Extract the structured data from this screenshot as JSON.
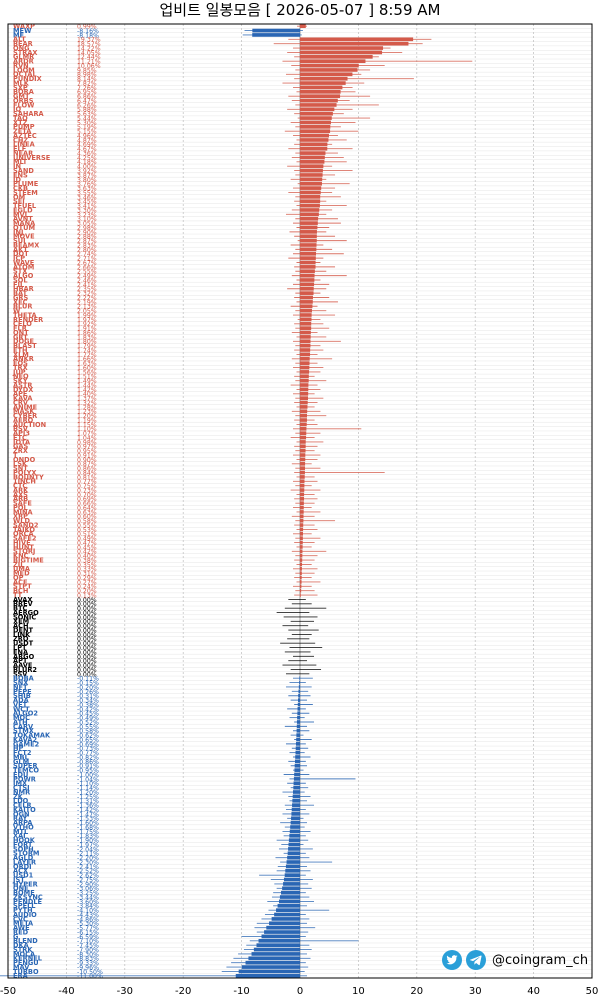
{
  "chart_data": {
    "type": "bar",
    "orientation": "horizontal",
    "title": "업비트 일봉모음 [ 2026-05-07 ]  8:59 AM",
    "xlim": [
      -50,
      50
    ],
    "x_ticks": [
      "-50",
      "-40",
      "-30",
      "-20",
      "-10",
      "0",
      "10",
      "20",
      "30",
      "40",
      "50"
    ],
    "grid": true,
    "colors": {
      "up": "#d45a4a",
      "down": "#2a66b4",
      "flat": "#000000"
    },
    "categories": [
      "WAXP",
      "MEW",
      "ME",
      "ALT",
      "BEAR",
      "ONG",
      "STRAX",
      "GLMR",
      "ARDR",
      "RVN",
      "LOOM",
      "OCTAL",
      "PUNDIX",
      "MLK",
      "SXP",
      "BORA",
      "GMT",
      "ORBS",
      "FLOW",
      "IQ",
      "SAHARA",
      "TAO",
      "XTZ",
      "PUMP",
      "ZETA",
      "AZTEC",
      "CHZ",
      "LINEA",
      "ELF",
      "NEAR",
      "UNIVERSE",
      "MLT",
      "IN",
      "SAND",
      "ENS",
      "ID",
      "PLUME",
      "CKB",
      "STEEM",
      "OM",
      "SEI",
      "TFUEL",
      "EGLD",
      "MVL",
      "AVNT",
      "MANA",
      "QTUM",
      "INJ",
      "MOVE",
      "SUI",
      "BEAMX",
      "AKT",
      "DOT",
      "ICP",
      "WAVE",
      "ATOM",
      "STX",
      "ALGO",
      "SOL",
      "FIL",
      "HBAR",
      "BAT",
      "GRS",
      "XEC",
      "BLUR",
      "W",
      "THETA",
      "RENDER",
      "CELO",
      "FLR",
      "ONT",
      "GRT",
      "DOGE",
      "BLAST",
      "ETH",
      "XLM",
      "ANKR",
      "EOS",
      "TRX",
      "JUP",
      "NEO",
      "SKY",
      "ASTR",
      "DYDX",
      "APE",
      "KAVA",
      "CRV",
      "ANIME",
      "MASK",
      "CYBER",
      "AERO",
      "AUCTION",
      "BSV",
      "API3",
      "ETC",
      "IOTA",
      "GAS",
      "ZRX",
      "T",
      "ONDO",
      "LSK",
      "SNT",
      "POLYX",
      "BOUNTY",
      "1INCH",
      "CTC",
      "ARK",
      "AXS",
      "ARB",
      "SAFE",
      "POL",
      "MINA",
      "XRP",
      "WLD",
      "SAND2",
      "TAIKO",
      "ORCA",
      "SAFE2",
      "HIVE",
      "HUNT",
      "STORJ",
      "KNC",
      "BIGTIME",
      "ZIL",
      "UMA",
      "MED",
      "OP",
      "ACE",
      "STPT",
      "BCH",
      "TT",
      "AVAX",
      "BREV",
      "BTC",
      "AERGO",
      "SONIC",
      "XEM",
      "ACH",
      "DENT",
      "LINK",
      "ZRO",
      "USDT",
      "LPT",
      "ENA",
      "ARGO",
      "APT",
      "AAVE",
      "BLUR2",
      "SSV",
      "BOBA",
      "SNX",
      "NFT",
      "PEPE",
      "SHIB",
      "ADA",
      "VET",
      "WCT",
      "ALGO2",
      "MOC",
      "ATH",
      "CARV",
      "STMX",
      "TOKAMAK",
      "KAVA2",
      "GAME2",
      "HP",
      "FCT2",
      "MBL",
      "GLM",
      "SUPER",
      "TEMCO",
      "EDU",
      "POWR",
      "IMX",
      "CTSI",
      "NMR",
      "ZK",
      "LDO",
      "CELR",
      "KAITO",
      "OGN",
      "RAY",
      "ARPA",
      "VTHO",
      "MTL",
      "XAI",
      "HOOK",
      "FORT",
      "SOPH",
      "STORM",
      "AGLD",
      "LAYER",
      "ORDI",
      "ACX",
      "USD1",
      "JST",
      "HYPER",
      "ONE",
      "BOME",
      "ZKSYNC",
      "PENDLE",
      "SPELL",
      "PYTH",
      "AUDIO",
      "CVC",
      "META",
      "AWE",
      "RED",
      "G",
      "BLEND",
      "DKA",
      "STRK",
      "MOCA",
      "KERNEL",
      "PENGU",
      "MAV",
      "TURBO",
      "ERA"
    ],
    "values": [
      0.99,
      -8.16,
      -8.18,
      19.37,
      18.57,
      14.22,
      14.05,
      12.44,
      11.21,
      10.06,
      9.85,
      8.98,
      8.14,
      7.82,
      7.26,
      6.95,
      6.86,
      6.47,
      6.26,
      5.88,
      5.63,
      5.44,
      5.3,
      5.19,
      5.15,
      4.96,
      4.87,
      4.69,
      4.67,
      4.36,
      4.25,
      4.18,
      4.0,
      3.92,
      3.87,
      3.8,
      3.76,
      3.63,
      3.55,
      3.46,
      3.45,
      3.41,
      3.3,
      3.23,
      3.1,
      3.05,
      2.98,
      2.9,
      2.88,
      2.87,
      2.83,
      2.8,
      2.74,
      2.71,
      2.67,
      2.66,
      2.55,
      2.49,
      2.46,
      2.41,
      2.35,
      2.32,
      2.22,
      2.19,
      2.13,
      2.05,
      1.99,
      1.97,
      1.92,
      1.91,
      1.86,
      1.83,
      1.8,
      1.79,
      1.74,
      1.72,
      1.66,
      1.63,
      1.6,
      1.56,
      1.51,
      1.49,
      1.44,
      1.42,
      1.4,
      1.37,
      1.32,
      1.28,
      1.23,
      1.2,
      1.19,
      1.15,
      1.1,
      1.07,
      1.04,
      0.98,
      0.97,
      0.95,
      0.91,
      0.9,
      0.87,
      0.86,
      0.84,
      0.81,
      0.77,
      0.75,
      0.73,
      0.7,
      0.69,
      0.66,
      0.64,
      0.63,
      0.6,
      0.58,
      0.55,
      0.53,
      0.51,
      0.49,
      0.47,
      0.45,
      0.42,
      0.4,
      0.38,
      0.35,
      0.33,
      0.31,
      0.29,
      0.27,
      0.24,
      0.2,
      0.13,
      0.0,
      0.0,
      0.0,
      0.0,
      0.0,
      0.0,
      0.0,
      0.0,
      0.0,
      0.0,
      0.0,
      0.0,
      0.0,
      0.0,
      0.0,
      0.0,
      0.0,
      0.0,
      -0.11,
      -0.15,
      -0.2,
      -0.26,
      -0.31,
      -0.34,
      -0.38,
      -0.42,
      -0.45,
      -0.49,
      -0.52,
      -0.55,
      -0.58,
      -0.62,
      -0.65,
      -0.69,
      -0.73,
      -0.77,
      -0.82,
      -0.86,
      -0.91,
      -0.95,
      -1.0,
      -1.04,
      -1.1,
      -1.14,
      -1.2,
      -1.25,
      -1.31,
      -1.36,
      -1.42,
      -1.47,
      -1.53,
      -1.6,
      -1.68,
      -1.75,
      -1.83,
      -1.9,
      -1.97,
      -2.04,
      -2.11,
      -2.2,
      -2.3,
      -2.41,
      -2.52,
      -2.62,
      -2.75,
      -2.9,
      -3.06,
      -3.25,
      -3.44,
      -3.6,
      -3.84,
      -4.1,
      -4.43,
      -4.86,
      -5.3,
      -5.77,
      -6.15,
      -6.59,
      -7.1,
      -7.45,
      -7.9,
      -8.3,
      -8.83,
      -9.33,
      -9.96,
      -10.5,
      -11.0,
      -12.0
    ],
    "labels": [
      "0.99%",
      "-8.16%",
      "-8.18%",
      "19.37%",
      "18.57%",
      "14.22%",
      "14.05%",
      "12.44%",
      "11.21%",
      "10.06%",
      "9.85%",
      "8.98%",
      "8.14%",
      "7.82%",
      "7.26%",
      "6.95%",
      "6.86%",
      "6.47%",
      "6.26%",
      "5.88%",
      "5.63%",
      "5.44%",
      "5.30%",
      "5.19%",
      "5.15%",
      "4.96%",
      "4.87%",
      "4.69%",
      "4.67%",
      "4.36%",
      "4.25%",
      "4.18%",
      "4.00%",
      "3.92%",
      "3.87%",
      "3.80%",
      "3.76%",
      "3.63%",
      "3.55%",
      "3.46%",
      "3.45%",
      "3.41%",
      "3.30%",
      "3.23%",
      "3.10%",
      "3.05%",
      "2.98%",
      "2.90%",
      "2.88%",
      "2.87%",
      "2.83%",
      "2.80%",
      "2.74%",
      "2.71%",
      "2.67%",
      "2.66%",
      "2.55%",
      "2.49%",
      "2.46%",
      "2.41%",
      "2.35%",
      "2.32%",
      "2.22%",
      "2.19%",
      "2.13%",
      "2.05%",
      "1.99%",
      "1.97%",
      "1.92%",
      "1.91%",
      "1.86%",
      "1.83%",
      "1.80%",
      "1.79%",
      "1.74%",
      "1.72%",
      "1.66%",
      "1.63%",
      "1.60%",
      "1.56%",
      "1.51%",
      "1.49%",
      "1.44%",
      "1.42%",
      "1.40%",
      "1.37%",
      "1.32%",
      "1.28%",
      "1.23%",
      "1.20%",
      "1.19%",
      "1.15%",
      "1.10%",
      "1.07%",
      "1.04%",
      "0.98%",
      "0.97%",
      "0.95%",
      "0.91%",
      "0.90%",
      "0.87%",
      "0.86%",
      "0.84%",
      "0.81%",
      "0.77%",
      "0.75%",
      "0.73%",
      "0.70%",
      "0.69%",
      "0.66%",
      "0.64%",
      "0.63%",
      "0.60%",
      "0.58%",
      "0.55%",
      "0.53%",
      "0.51%",
      "0.49%",
      "0.47%",
      "0.45%",
      "0.42%",
      "0.40%",
      "0.38%",
      "0.35%",
      "0.33%",
      "0.31%",
      "0.29%",
      "0.27%",
      "0.24%",
      "0.20%",
      "0.13%",
      "0.00%",
      "0.00%",
      "0.00%",
      "0.00%",
      "0.00%",
      "0.00%",
      "0.00%",
      "0.00%",
      "0.00%",
      "0.00%",
      "0.00%",
      "0.00%",
      "0.00%",
      "0.00%",
      "0.00%",
      "0.00%",
      "0.00%",
      "0.00%",
      "-0.11%",
      "-0.15%",
      "-0.20%",
      "-0.26%",
      "-0.31%",
      "-0.34%",
      "-0.38%",
      "-0.42%",
      "-0.45%",
      "-0.49%",
      "-0.52%",
      "-0.55%",
      "-0.58%",
      "-0.62%",
      "-0.65%",
      "-0.69%",
      "-0.73%",
      "-0.77%",
      "-0.82%",
      "-0.86%",
      "-0.91%",
      "-0.95%",
      "-1.00%",
      "-1.04%",
      "-1.10%",
      "-1.14%",
      "-1.20%",
      "-1.25%",
      "-1.31%",
      "-1.36%",
      "-1.42%",
      "-1.47%",
      "-1.53%",
      "-1.60%",
      "-1.68%",
      "-1.75%",
      "-1.83%",
      "-1.90%",
      "-1.97%",
      "-2.04%",
      "-2.11%",
      "-2.20%",
      "-2.30%",
      "-2.41%",
      "-2.52%",
      "-2.62%",
      "-2.75%",
      "-2.90%",
      "-3.06%",
      "-3.25%",
      "-3.44%",
      "-3.60%",
      "-3.84%",
      "-4.10%",
      "-4.43%",
      "-4.86%",
      "-5.30%",
      "-5.77%",
      "-6.15%",
      "-6.59%",
      "-7.10%",
      "-7.45%",
      "-7.90%",
      "-8.30%",
      "-8.83%",
      "-9.33%",
      "-9.96%",
      "-10.50%",
      "-11.00%",
      "-12.00%"
    ],
    "lows": [
      -0.5,
      -9.5,
      -9.8,
      -2.0,
      -4.5,
      -1.2,
      -2.2,
      -1.0,
      -3.0,
      -1.5,
      -0.8,
      -2.4,
      -1.0,
      -3.0,
      -1.2,
      -0.6,
      -2.0,
      -1.4,
      -0.8,
      -2.2,
      -1.0,
      -0.4,
      -1.6,
      -0.8,
      -2.6,
      -1.2,
      -0.6,
      -1.0,
      -2.0,
      -0.8,
      -1.4,
      -0.6,
      -2.2,
      -1.0,
      -0.8,
      -1.6,
      -0.4,
      -1.2,
      -2.0,
      -0.8,
      -1.0,
      -0.6,
      -1.4,
      -2.4,
      -0.8,
      -1.2,
      -0.6,
      -1.8,
      -1.0,
      -0.4,
      -1.6,
      -0.8,
      -1.2,
      -2.0,
      -0.6,
      -1.0,
      -0.8,
      -1.4,
      -0.6,
      -1.2,
      -2.2,
      -0.8,
      -1.0,
      -0.6,
      -1.6,
      -0.8,
      -1.2,
      -0.4,
      -1.0,
      -0.8,
      -1.4,
      -0.6,
      -1.2,
      -0.8,
      -1.0,
      -0.6,
      -1.4,
      -0.8,
      -1.2,
      -0.6,
      -1.0,
      -0.8,
      -1.6,
      -0.6,
      -1.2,
      -0.8,
      -1.0,
      -0.6,
      -1.4,
      -0.8,
      -1.0,
      -0.6,
      -1.2,
      -0.8,
      -1.6,
      -0.6,
      -1.0,
      -0.8,
      -1.2,
      -0.6,
      -1.4,
      -0.8,
      -1.0,
      -0.6,
      -1.2,
      -0.8,
      -1.6,
      -0.6,
      -1.0,
      -0.8,
      -1.2,
      -0.6,
      -1.4,
      -0.8,
      -1.0,
      -0.6,
      -1.2,
      -0.8,
      -1.0,
      -0.6,
      -1.4,
      -0.8,
      -1.0,
      -0.6,
      -1.2,
      -0.8,
      -1.0,
      -0.6,
      -1.2,
      -0.8,
      -1.0,
      -2.0,
      -1.4,
      -2.6,
      -4.0,
      -2.8,
      -1.6,
      -3.0,
      -2.0,
      -1.4,
      -2.2,
      -3.4,
      -1.8,
      -2.6,
      -1.2,
      -2.0,
      -3.0,
      -1.6,
      -2.4,
      -1.2,
      -1.8,
      -2.4,
      -1.4,
      -2.0,
      -1.6,
      -1.0,
      -2.2,
      -1.4,
      -1.8,
      -1.0,
      -2.6,
      -1.2,
      -1.6,
      -1.0,
      -2.4,
      -1.4,
      -1.8,
      -1.2,
      -2.0,
      -1.6,
      -1.2,
      -2.8,
      -1.8,
      -2.2,
      -1.6,
      -3.0,
      -2.0,
      -1.8,
      -2.6,
      -2.4,
      -3.0,
      -2.2,
      -3.4,
      -2.6,
      -3.0,
      -2.8,
      -4.0,
      -3.2,
      -3.6,
      -2.8,
      -4.2,
      -3.4,
      -3.8,
      -4.0,
      -7.0,
      -5.0,
      -4.4,
      -4.0,
      -4.6,
      -4.8,
      -5.6,
      -4.6,
      -5.4,
      -6.0,
      -6.6,
      -7.4,
      -7.8,
      -7.4,
      -10.0,
      -8.6,
      -9.2,
      -9.6,
      -10.6,
      -11.4,
      -11.8,
      -12.6,
      -13.4
    ],
    "highs": [
      1.2,
      0.5,
      0.3,
      22.5,
      21.0,
      15.5,
      17.5,
      13.5,
      29.5,
      14.5,
      12.0,
      10.5,
      19.5,
      11.0,
      9.0,
      9.5,
      12.0,
      8.5,
      13.5,
      9.0,
      7.5,
      12.0,
      9.5,
      7.0,
      10.0,
      6.5,
      8.0,
      5.5,
      9.0,
      6.5,
      7.5,
      8.0,
      5.5,
      9.0,
      6.0,
      4.5,
      8.5,
      6.0,
      5.5,
      7.0,
      4.5,
      8.0,
      5.5,
      4.5,
      6.5,
      7.0,
      5.0,
      4.5,
      6.0,
      8.0,
      4.0,
      5.5,
      7.5,
      4.0,
      3.5,
      6.0,
      4.5,
      8.0,
      3.5,
      5.0,
      4.5,
      3.5,
      5.0,
      6.5,
      3.0,
      4.5,
      6.0,
      3.5,
      4.0,
      5.0,
      3.0,
      4.5,
      7.0,
      3.5,
      4.0,
      3.0,
      5.5,
      3.0,
      4.0,
      3.5,
      2.5,
      4.5,
      3.0,
      3.5,
      2.5,
      4.0,
      3.0,
      2.5,
      3.5,
      4.5,
      2.5,
      3.0,
      10.5,
      3.5,
      2.5,
      4.0,
      3.0,
      2.5,
      3.5,
      3.0,
      2.0,
      3.5,
      14.5,
      2.5,
      3.0,
      2.0,
      3.5,
      2.5,
      3.0,
      2.5,
      2.0,
      3.5,
      2.5,
      6.0,
      2.5,
      3.0,
      2.0,
      3.5,
      2.5,
      2.0,
      4.5,
      3.0,
      2.5,
      2.0,
      3.0,
      2.5,
      2.0,
      3.5,
      2.0,
      2.5,
      3.0,
      1.0,
      2.0,
      4.5,
      1.6,
      3.0,
      2.4,
      1.4,
      3.2,
      2.0,
      1.6,
      2.6,
      3.8,
      1.8,
      2.4,
      1.2,
      2.8,
      3.6,
      1.6,
      2.2,
      1.0,
      2.0,
      1.4,
      1.8,
      1.2,
      2.2,
      1.0,
      1.6,
      0.8,
      2.4,
      1.2,
      1.6,
      0.6,
      2.0,
      1.0,
      1.4,
      0.8,
      1.8,
      1.0,
      1.2,
      0.6,
      1.6,
      9.5,
      1.0,
      1.4,
      0.8,
      1.8,
      1.2,
      2.4,
      1.0,
      1.6,
      0.6,
      1.2,
      0.8,
      1.8,
      1.0,
      1.4,
      0.6,
      2.2,
      1.0,
      1.6,
      5.5,
      1.2,
      1.8,
      1.0,
      2.2,
      1.4,
      2.0,
      1.0,
      1.6,
      2.4,
      1.2,
      5.0,
      1.0,
      1.6,
      1.2,
      2.6,
      1.4,
      1.0,
      10.0,
      1.6,
      2.0,
      1.2,
      1.8,
      1.0,
      1.4,
      0.8,
      1.2,
      0.6
    ]
  },
  "branding": {
    "handle": "@coingram_ch",
    "icons": [
      "twitter-icon",
      "telegram-icon"
    ]
  }
}
